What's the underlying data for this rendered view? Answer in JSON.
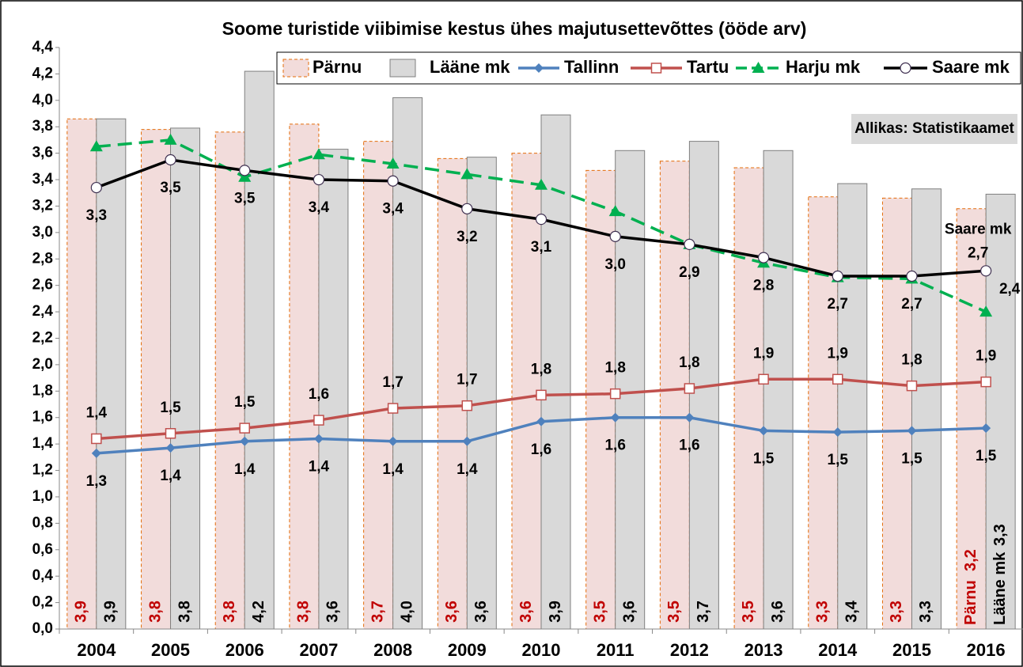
{
  "chart_data": {
    "type": "bar_line",
    "title": "Soome turistide viibimise kestus ühes majutusettevõttes (ööde arv)",
    "annotation": "Allikas: Statistikaamet",
    "categories": [
      "2004",
      "2005",
      "2006",
      "2007",
      "2008",
      "2009",
      "2010",
      "2011",
      "2012",
      "2013",
      "2014",
      "2015",
      "2016"
    ],
    "ylim": [
      0,
      4.4
    ],
    "yticks": [
      {
        "value": 0,
        "label": "0,0"
      },
      {
        "value": 0.2,
        "label": "0,2"
      },
      {
        "value": 0.4,
        "label": "0,4"
      },
      {
        "value": 0.6,
        "label": "0,6"
      },
      {
        "value": 0.8,
        "label": "0,8"
      },
      {
        "value": 1,
        "label": "1,0"
      },
      {
        "value": 1.2,
        "label": "1,2"
      },
      {
        "value": 1.4,
        "label": "1,4"
      },
      {
        "value": 1.6,
        "label": "1,6"
      },
      {
        "value": 1.8,
        "label": "1,8"
      },
      {
        "value": 2,
        "label": "2,0"
      },
      {
        "value": 2.2,
        "label": "2,2"
      },
      {
        "value": 2.4,
        "label": "2,4"
      },
      {
        "value": 2.6,
        "label": "2,6"
      },
      {
        "value": 2.8,
        "label": "2,8"
      },
      {
        "value": 3,
        "label": "3,0"
      },
      {
        "value": 3.2,
        "label": "3,2"
      },
      {
        "value": 3.4,
        "label": "3,4"
      },
      {
        "value": 3.6,
        "label": "3,6"
      },
      {
        "value": 3.8,
        "label": "3,8"
      },
      {
        "value": 4,
        "label": "4,0"
      },
      {
        "value": 4.2,
        "label": "4,2"
      },
      {
        "value": 4.4,
        "label": "4,4"
      }
    ],
    "legend": "top",
    "series": [
      {
        "name": "Pärnu",
        "kind": "bar",
        "color": "#f2dcdb",
        "edge": "#e46c0a",
        "label_color": "#c00000",
        "values": [
          3.86,
          3.78,
          3.76,
          3.82,
          3.69,
          3.56,
          3.6,
          3.47,
          3.54,
          3.49,
          3.27,
          3.26,
          3.18
        ],
        "value_labels": [
          "3,9",
          "3,8",
          "3,8",
          "3,8",
          "3,7",
          "3,6",
          "3,6",
          "3,5",
          "3,5",
          "3,5",
          "3,3",
          "3,3",
          "3,2"
        ]
      },
      {
        "name": "Lääne mk",
        "kind": "bar",
        "color": "#d9d9d9",
        "edge": "#7f7f7f",
        "label_color": "#000000",
        "values": [
          3.86,
          3.79,
          4.22,
          3.63,
          4.02,
          3.57,
          3.89,
          3.62,
          3.69,
          3.62,
          3.37,
          3.33,
          3.29
        ],
        "value_labels": [
          "3,9",
          "3,8",
          "4,2",
          "3,6",
          "4,0",
          "3,6",
          "3,9",
          "3,6",
          "3,7",
          "3,6",
          "3,4",
          "3,3",
          "3,3"
        ]
      },
      {
        "name": "Tallinn",
        "kind": "line",
        "marker": "diamond",
        "color": "#4f81bd",
        "values": [
          1.33,
          1.37,
          1.42,
          1.44,
          1.42,
          1.42,
          1.57,
          1.6,
          1.6,
          1.5,
          1.49,
          1.5,
          1.52
        ],
        "value_labels": [
          "1,3",
          "1,4",
          "1,4",
          "1,4",
          "1,4",
          "1,4",
          "1,6",
          "1,6",
          "1,6",
          "1,5",
          "1,5",
          "1,5",
          "1,5"
        ]
      },
      {
        "name": "Tartu",
        "kind": "line",
        "marker": "square",
        "color": "#c0504d",
        "values": [
          1.44,
          1.48,
          1.52,
          1.58,
          1.67,
          1.69,
          1.77,
          1.78,
          1.82,
          1.89,
          1.89,
          1.84,
          1.87
        ],
        "value_labels": [
          "1,4",
          "1,5",
          "1,5",
          "1,6",
          "1,7",
          "1,7",
          "1,8",
          "1,8",
          "1,8",
          "1,9",
          "1,9",
          "1,8",
          "1,9"
        ]
      },
      {
        "name": "Harju mk",
        "kind": "line",
        "marker": "triangle",
        "color": "#00b050",
        "dashed": true,
        "values": [
          3.65,
          3.7,
          3.42,
          3.59,
          3.52,
          3.44,
          3.36,
          3.16,
          2.91,
          2.77,
          2.66,
          2.65,
          2.4
        ],
        "value_labels": [
          null,
          null,
          null,
          null,
          null,
          null,
          null,
          null,
          null,
          null,
          null,
          null,
          "2,4"
        ]
      },
      {
        "name": "Saare mk",
        "kind": "line",
        "marker": "circle",
        "color": "#000000",
        "marker_color": "#403152",
        "values": [
          3.34,
          3.55,
          3.47,
          3.4,
          3.39,
          3.18,
          3.1,
          2.97,
          2.91,
          2.81,
          2.67,
          2.67,
          2.71
        ],
        "value_labels": [
          "3,3",
          "3,5",
          "3,5",
          "3,4",
          "3,4",
          "3,2",
          "3,1",
          "3,0",
          "2,9",
          "2,8",
          "2,7",
          "2,7",
          "2,7"
        ]
      }
    ]
  }
}
